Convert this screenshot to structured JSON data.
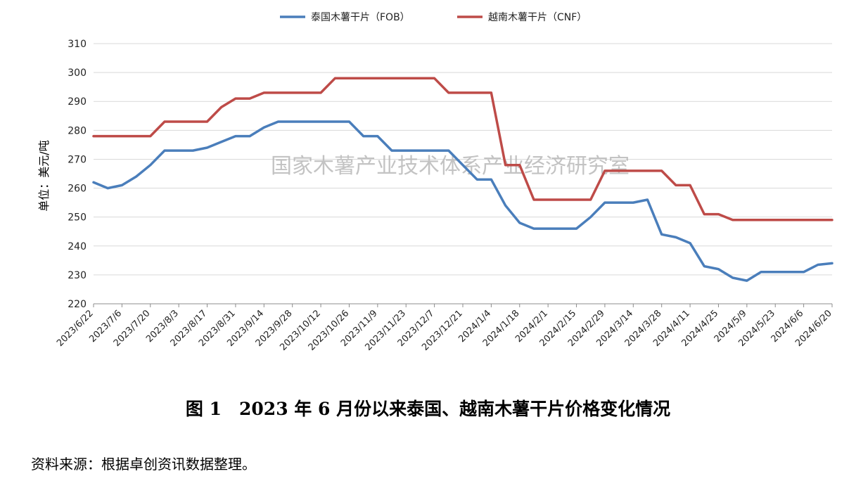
{
  "chart_data": {
    "type": "line",
    "ylabel": "单位：美元/吨",
    "ylim": [
      220,
      310
    ],
    "yticks": [
      220,
      230,
      240,
      250,
      260,
      270,
      280,
      290,
      300,
      310
    ],
    "grid": "horizontal",
    "legend_position": "top",
    "watermark": "国家木薯产业技术体系产业经济研究室",
    "x": [
      "2023/6/22",
      "2023/6/29",
      "2023/7/6",
      "2023/7/13",
      "2023/7/20",
      "2023/7/27",
      "2023/8/3",
      "2023/8/10",
      "2023/8/17",
      "2023/8/24",
      "2023/8/31",
      "2023/9/7",
      "2023/9/14",
      "2023/9/21",
      "2023/9/28",
      "2023/10/5",
      "2023/10/12",
      "2023/10/19",
      "2023/10/26",
      "2023/11/2",
      "2023/11/9",
      "2023/11/16",
      "2023/11/23",
      "2023/11/30",
      "2023/12/7",
      "2023/12/14",
      "2023/12/21",
      "2023/12/28",
      "2024/1/4",
      "2024/1/11",
      "2024/1/18",
      "2024/1/25",
      "2024/2/1",
      "2024/2/8",
      "2024/2/15",
      "2024/2/22",
      "2024/2/29",
      "2024/3/7",
      "2024/3/14",
      "2024/3/21",
      "2024/3/28",
      "2024/4/4",
      "2024/4/11",
      "2024/4/18",
      "2024/4/25",
      "2024/5/2",
      "2024/5/9",
      "2024/5/16",
      "2024/5/23",
      "2024/5/30",
      "2024/6/6",
      "2024/6/13",
      "2024/6/20"
    ],
    "tick_labels": [
      "2023/6/22",
      "2023/7/6",
      "2023/7/20",
      "2023/8/3",
      "2023/8/17",
      "2023/8/31",
      "2023/9/14",
      "2023/9/28",
      "2023/10/12",
      "2023/10/26",
      "2023/11/9",
      "2023/11/23",
      "2023/12/7",
      "2023/12/21",
      "2024/1/4",
      "2024/1/18",
      "2024/2/1",
      "2024/2/15",
      "2024/2/29",
      "2024/3/14",
      "2024/3/28",
      "2024/4/11",
      "2024/4/25",
      "2024/5/9",
      "2024/5/23",
      "2024/6/6",
      "2024/6/20"
    ],
    "series": [
      {
        "name": "泰国木薯干片（FOB）",
        "color": "#4a7ebb",
        "values": [
          262,
          260,
          261,
          264,
          268,
          273,
          273,
          273,
          274,
          276,
          278,
          278,
          281,
          283,
          283,
          283,
          283,
          283,
          283,
          278,
          278,
          273,
          273,
          273,
          273,
          273,
          268,
          263,
          263,
          254,
          248,
          246,
          246,
          246,
          246,
          250,
          255,
          255,
          255,
          256,
          244,
          243,
          241,
          233,
          232,
          229,
          228,
          231,
          231,
          231,
          231,
          233.5,
          234
        ]
      },
      {
        "name": "越南木薯干片（CNF）",
        "color": "#be4b48",
        "values": [
          278,
          278,
          278,
          278,
          278,
          283,
          283,
          283,
          283,
          288,
          291,
          291,
          293,
          293,
          293,
          293,
          293,
          298,
          298,
          298,
          298,
          298,
          298,
          298,
          298,
          293,
          293,
          293,
          293,
          268,
          268,
          256,
          256,
          256,
          256,
          256,
          266,
          266,
          266,
          266,
          266,
          261,
          261,
          251,
          251,
          249,
          249,
          249,
          249,
          249,
          249,
          249,
          249
        ]
      }
    ]
  },
  "caption": "图 1　2023 年 6 月份以来泰国、越南木薯干片价格变化情况",
  "source": "资料来源：根据卓创资讯数据整理。"
}
